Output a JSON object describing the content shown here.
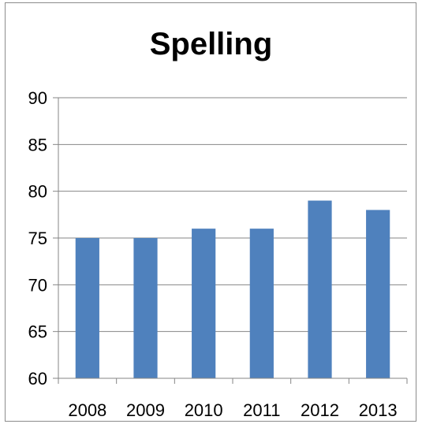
{
  "chart_data": {
    "type": "bar",
    "title": "Spelling",
    "xlabel": "",
    "ylabel": "",
    "categories": [
      "2008",
      "2009",
      "2010",
      "2011",
      "2012",
      "2013"
    ],
    "values": [
      75,
      75,
      76,
      76,
      79,
      78
    ],
    "ylim": [
      60,
      90
    ],
    "yticks": [
      60,
      65,
      70,
      75,
      80,
      85,
      90
    ],
    "grid": true,
    "legend": "none",
    "colors": {
      "bar": "#4F81BD",
      "grid": "#868686",
      "axis": "#868686"
    }
  }
}
